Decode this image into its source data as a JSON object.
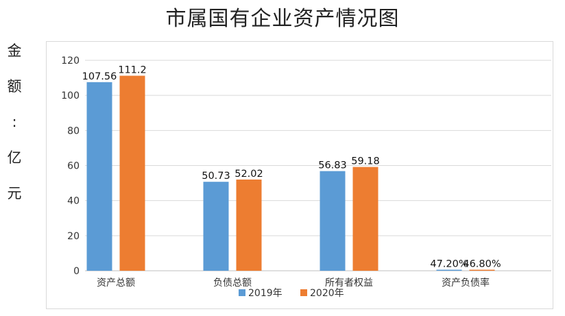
{
  "chart_data": {
    "type": "bar",
    "title": "市属国有企业资产情况图",
    "ylabel_chars": [
      "金",
      "额",
      ":",
      "亿",
      "元"
    ],
    "xlabel": "",
    "categories": [
      "资产总额",
      "负债总额",
      "所有者权益",
      "资产负债率"
    ],
    "series": [
      {
        "name": "2019年",
        "color": "#5b9bd5",
        "values": [
          107.56,
          50.73,
          56.83,
          0.472
        ],
        "labels": [
          "107.56",
          "50.73",
          "56.83",
          "47.20%"
        ]
      },
      {
        "name": "2020年",
        "color": "#ed7d31",
        "values": [
          111.2,
          52.02,
          59.18,
          0.468
        ],
        "labels": [
          "111.2",
          "52.02",
          "59.18",
          "46.80%"
        ]
      }
    ],
    "ylim": [
      0,
      120
    ],
    "yticks": [
      0,
      20,
      40,
      60,
      80,
      100,
      120
    ],
    "grid": true,
    "legend_position": "bottom"
  }
}
